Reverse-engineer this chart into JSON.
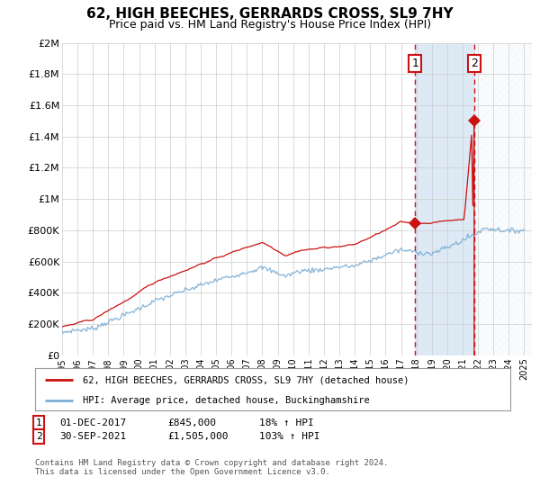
{
  "title": "62, HIGH BEECHES, GERRARDS CROSS, SL9 7HY",
  "subtitle": "Price paid vs. HM Land Registry's House Price Index (HPI)",
  "title_fontsize": 11,
  "subtitle_fontsize": 9,
  "ylabel_ticks": [
    "£0",
    "£200K",
    "£400K",
    "£600K",
    "£800K",
    "£1M",
    "£1.2M",
    "£1.4M",
    "£1.6M",
    "£1.8M",
    "£2M"
  ],
  "ytick_values": [
    0,
    200000,
    400000,
    600000,
    800000,
    1000000,
    1200000,
    1400000,
    1600000,
    1800000,
    2000000
  ],
  "ylim": [
    0,
    2000000
  ],
  "xlim_start": 1995.0,
  "xlim_end": 2025.5,
  "hpi_color": "#7aadd4",
  "property_color": "#cc1111",
  "sale1_year": 2017.917,
  "sale1_price": 845000,
  "sale2_year": 2021.75,
  "sale2_price": 1505000,
  "legend_label_property": "62, HIGH BEECHES, GERRARDS CROSS, SL9 7HY (detached house)",
  "legend_label_hpi": "HPI: Average price, detached house, Buckinghamshire",
  "footnote": "Contains HM Land Registry data © Crown copyright and database right 2024.\nThis data is licensed under the Open Government Licence v3.0.",
  "table_rows": [
    [
      "1",
      "01-DEC-2017",
      "£845,000",
      "18% ↑ HPI"
    ],
    [
      "2",
      "30-SEP-2021",
      "£1,505,000",
      "103% ↑ HPI"
    ]
  ],
  "background_color": "#ffffff",
  "grid_color": "#cccccc",
  "shaded_region_color": "#ddeaf5",
  "hatch_region_color": "#e8f0f8"
}
